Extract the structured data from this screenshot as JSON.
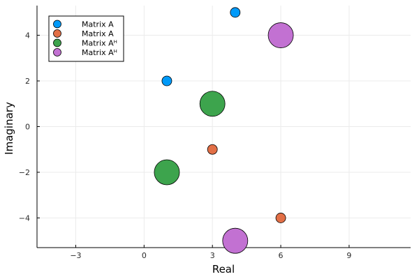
{
  "chart_data": {
    "type": "scatter",
    "title": "",
    "xlabel": "Real",
    "ylabel": "Imaginary",
    "xlim": [
      -4.7,
      11.7
    ],
    "ylim": [
      -5.3,
      5.3
    ],
    "xticks": [
      -3,
      0,
      3,
      6,
      9
    ],
    "yticks": [
      -4,
      -2,
      0,
      2,
      4
    ],
    "grid": true,
    "legend_position": "top-left",
    "series": [
      {
        "name": "Matrix A",
        "color": "#009af9",
        "marker_size": "small",
        "points": [
          {
            "x": 4,
            "y": 5
          },
          {
            "x": 1,
            "y": 2
          }
        ]
      },
      {
        "name": "Matrix A",
        "color": "#e26f46",
        "marker_size": "small",
        "points": [
          {
            "x": 3,
            "y": -1
          },
          {
            "x": 6,
            "y": -4
          }
        ]
      },
      {
        "name": "Matrix Aᴴ",
        "color": "#3da44d",
        "marker_size": "large",
        "points": [
          {
            "x": 3,
            "y": 1
          },
          {
            "x": 1,
            "y": -2
          }
        ]
      },
      {
        "name": "Matrix Aᴴ",
        "color": "#c271d2",
        "marker_size": "large",
        "points": [
          {
            "x": 6,
            "y": 4
          },
          {
            "x": 4,
            "y": -5
          }
        ]
      }
    ]
  }
}
